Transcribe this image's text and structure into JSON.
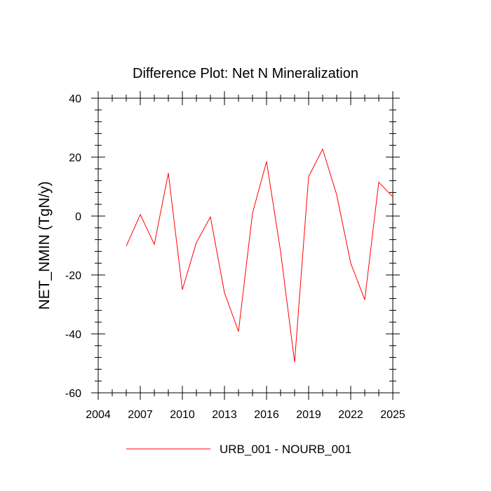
{
  "chart_data": {
    "type": "line",
    "title": "Difference Plot: Net N Mineralization",
    "xlabel": "",
    "ylabel": "NET_NMIN  (TgN/y)",
    "xlim": [
      2004,
      2025
    ],
    "ylim": [
      -60,
      40
    ],
    "xticks": [
      2004,
      2007,
      2010,
      2013,
      2016,
      2019,
      2022,
      2025
    ],
    "yticks": [
      -60,
      -40,
      -20,
      0,
      20,
      40
    ],
    "grid": false,
    "legend_position": "bottom-center",
    "series": [
      {
        "name": "URB_001 - NOURB_001",
        "color": "#ff0000",
        "x": [
          2006,
          2007,
          2008,
          2009,
          2010,
          2011,
          2012,
          2013,
          2014,
          2015,
          2016,
          2017,
          2018,
          2019,
          2020,
          2021,
          2022,
          2023,
          2024,
          2025
        ],
        "y": [
          -10.2,
          0.5,
          -9.6,
          14.6,
          -25.0,
          -9.0,
          -0.3,
          -26.0,
          -39.2,
          1.0,
          18.5,
          -12.0,
          -49.6,
          13.4,
          22.7,
          7.2,
          -16.0,
          -28.4,
          11.5,
          6.5
        ]
      }
    ]
  }
}
